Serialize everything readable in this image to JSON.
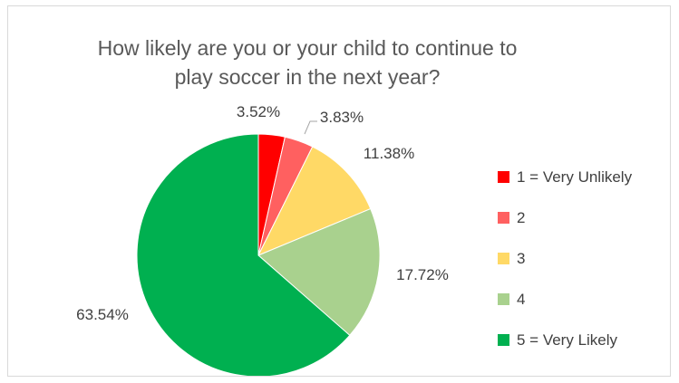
{
  "chart_data": {
    "type": "pie",
    "title_lines": [
      "How likely are you or your child to continue to",
      "play soccer in the next year?"
    ],
    "slices": [
      {
        "label": "1 = Very Unlikely",
        "value": 3.52,
        "display": "3.52%",
        "color": "#ff0000"
      },
      {
        "label": "2",
        "value": 3.83,
        "display": "3.83%",
        "color": "#ff6060"
      },
      {
        "label": "3",
        "value": 11.38,
        "display": "11.38%",
        "color": "#ffd966"
      },
      {
        "label": "4",
        "value": 17.72,
        "display": "17.72%",
        "color": "#a9d18e"
      },
      {
        "label": "5 = Very Likely",
        "value": 63.54,
        "display": "63.54%",
        "color": "#00b050"
      }
    ],
    "start_angle_deg": 0,
    "direction": "clockwise",
    "legend_position": "right"
  }
}
